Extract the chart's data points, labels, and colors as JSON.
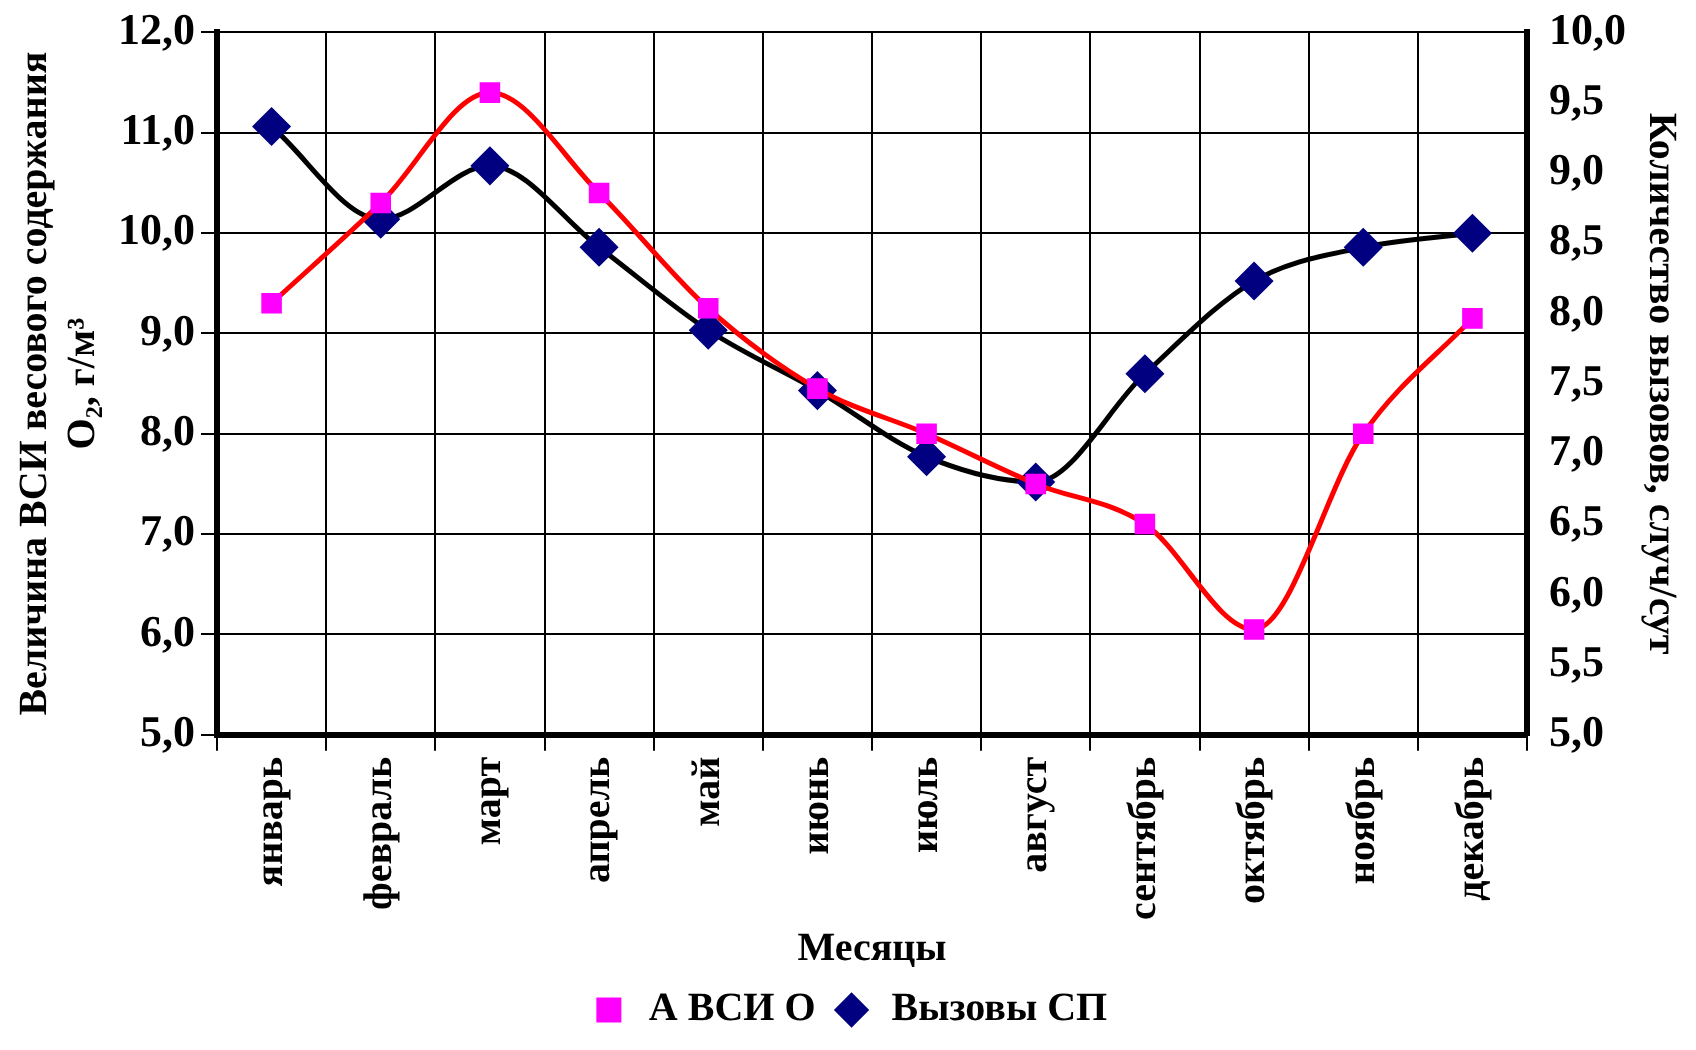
{
  "chart_data": {
    "type": "line",
    "xlabel": "Месяцы",
    "ylabel": "Величина ВСИ весового содержания\nO₂, г/м³",
    "y2label": "Количество вызовов, случ/сут",
    "categories": [
      "январь",
      "февраль",
      "март",
      "апрель",
      "май",
      "июнь",
      "июль",
      "август",
      "сентябрь",
      "октябрь",
      "ноябрь",
      "декабрь"
    ],
    "series": [
      {
        "name": "А ВСИ О",
        "color": "#ff0000",
        "marker": "square",
        "values": [
          9.3,
          10.3,
          11.4,
          10.4,
          9.25,
          8.45,
          8.0,
          7.5,
          7.1,
          6.05,
          8.0,
          9.15
        ]
      },
      {
        "name": "Вызовы СП",
        "color": "#000000",
        "marker": "diamond",
        "axis": "y2",
        "values": [
          9.33,
          8.67,
          9.05,
          8.47,
          7.88,
          7.45,
          6.98,
          6.8,
          7.57,
          8.23,
          8.47,
          8.57
        ]
      }
    ],
    "ylim": [
      5,
      12
    ],
    "yticks": [
      {
        "value": 5,
        "label": "5,0"
      },
      {
        "value": 6,
        "label": "6,0"
      },
      {
        "value": 7,
        "label": "7,0"
      },
      {
        "value": 8,
        "label": "8,0"
      },
      {
        "value": 9,
        "label": "9,0"
      },
      {
        "value": 10,
        "label": "10,0"
      },
      {
        "value": 11,
        "label": "11,0"
      },
      {
        "value": 12,
        "label": "12,0"
      }
    ],
    "y2lim": [
      5,
      10
    ],
    "y2ticks": [
      {
        "value": 5,
        "label": "5,0"
      },
      {
        "value": 5.5,
        "label": "5,5"
      },
      {
        "value": 6,
        "label": "6,0"
      },
      {
        "value": 6.5,
        "label": "6,5"
      },
      {
        "value": 7,
        "label": "7,0"
      },
      {
        "value": 7.5,
        "label": "7,5"
      },
      {
        "value": 8,
        "label": "8,0"
      },
      {
        "value": 8.5,
        "label": "8,5"
      },
      {
        "value": 9,
        "label": "9,0"
      },
      {
        "value": 9.5,
        "label": "9,5"
      },
      {
        "value": 10,
        "label": "10,0"
      }
    ],
    "grid": true,
    "legend": "bottom",
    "line_style": "solid"
  }
}
